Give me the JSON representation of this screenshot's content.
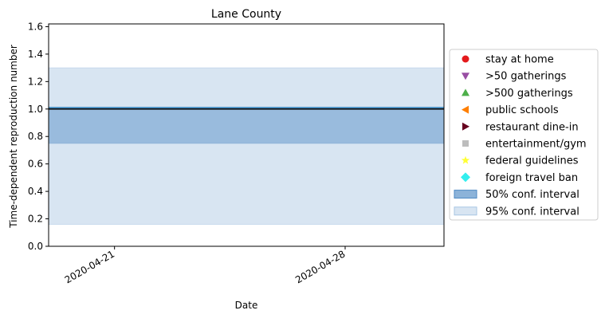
{
  "chart_data": {
    "type": "line",
    "title": "Lane County",
    "xlabel": "Date",
    "ylabel": "Time-dependent reproduction number",
    "x_ticks": [
      "2020-04-21",
      "2020-04-28"
    ],
    "x_range": [
      "2020-04-19",
      "2020-05-01"
    ],
    "ylim": [
      0,
      1.62
    ],
    "y_ticks": [
      "0.0",
      "0.2",
      "0.4",
      "0.6",
      "0.8",
      "1.0",
      "1.2",
      "1.4",
      "1.6"
    ],
    "grid": false,
    "legend_placement": "right, outside plot",
    "reference_line": {
      "y": 1.0,
      "color": "#000000"
    },
    "series": [
      {
        "label": "50% conf. interval",
        "kind": "band",
        "x": [
          "2020-04-19",
          "2020-05-01"
        ],
        "lower": [
          0.75,
          0.75
        ],
        "upper": [
          1.0,
          1.0
        ],
        "color": "#4f8ac4",
        "opacity": 0.65
      },
      {
        "label": "95% conf. interval",
        "kind": "band",
        "x": [
          "2020-04-19",
          "2020-05-01"
        ],
        "lower": [
          0.16,
          0.16
        ],
        "upper": [
          1.3,
          1.3
        ],
        "color": "#a9c6e3",
        "opacity": 0.45
      },
      {
        "kind": "line",
        "x": [
          "2020-04-19",
          "2020-05-01"
        ],
        "y": [
          1.01,
          1.01
        ],
        "color": "#1f77b4"
      }
    ],
    "legend": [
      {
        "label": "stay at home",
        "marker": "circle",
        "color": "#e41a1c"
      },
      {
        "label": ">50 gatherings",
        "marker": "triangle-down",
        "color": "#984ea3"
      },
      {
        "label": ">500 gatherings",
        "marker": "triangle-up",
        "color": "#4daf4a"
      },
      {
        "label": "public schools",
        "marker": "triangle-left",
        "color": "#ff7f00"
      },
      {
        "label": "restaurant dine-in",
        "marker": "triangle-right",
        "color": "#67001f"
      },
      {
        "label": "entertainment/gym",
        "marker": "square",
        "color": "#bdbdbd"
      },
      {
        "label": "federal guidelines",
        "marker": "star",
        "color": "#ffff33"
      },
      {
        "label": "foreign travel ban",
        "marker": "diamond",
        "color": "#33eeee"
      },
      {
        "label": "50% conf. interval",
        "marker": "patch",
        "color": "#4f8ac4",
        "opacity": 0.65
      },
      {
        "label": "95% conf. interval",
        "marker": "patch",
        "color": "#a9c6e3",
        "opacity": 0.45
      }
    ]
  }
}
